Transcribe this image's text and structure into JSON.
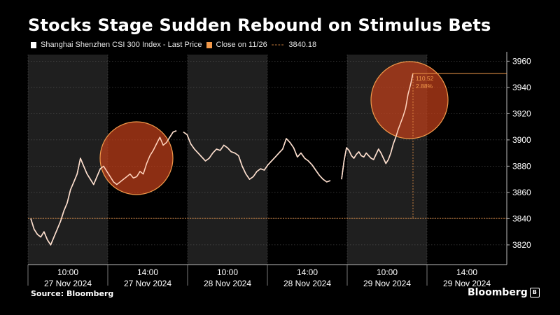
{
  "title": "Stocks Stage Sudden Rebound on Stimulus Bets",
  "legend": {
    "series_label": "Shanghai Shenzhen CSI 300 Index - Last Price",
    "ref_label": "Close on 11/26",
    "ref_value": "3840.18"
  },
  "annotation": {
    "change": "110.52",
    "pct": "2.88%"
  },
  "source": "Source: Bloomberg",
  "brand": "Bloomberg",
  "colors": {
    "background": "#000000",
    "shade": "#1f1f1f",
    "line": "#ffffff",
    "accent": "#f2994a",
    "circle": "#c2401a"
  },
  "chart_data": {
    "type": "line",
    "ylim": [
      3805,
      3965
    ],
    "yticks": [
      3820,
      3840,
      3860,
      3880,
      3900,
      3920,
      3940,
      3960
    ],
    "reference_line": 3840.18,
    "sessions": [
      {
        "date": "27 Nov 2024",
        "tick": "10:00"
      },
      {
        "date": "27 Nov 2024",
        "tick": "14:00"
      },
      {
        "date": "28 Nov 2024",
        "tick": "10:00"
      },
      {
        "date": "28 Nov 2024",
        "tick": "14:00"
      },
      {
        "date": "29 Nov 2024",
        "tick": "10:00"
      },
      {
        "date": "29 Nov 2024",
        "tick": "14:00"
      }
    ],
    "series": [
      {
        "day": "27 Nov 2024",
        "values": [
          3840,
          3832,
          3828,
          3826,
          3830,
          3824,
          3820,
          3826,
          3832,
          3838,
          3846,
          3852,
          3862,
          3868,
          3874,
          3886,
          3880,
          3874,
          3870,
          3866,
          3872,
          3878,
          3880,
          3876,
          3872,
          3868,
          3866,
          3868,
          3870,
          3872,
          3874,
          3871,
          3872,
          3876,
          3874,
          3882,
          3888,
          3892,
          3897,
          3902,
          3896,
          3898,
          3902,
          3906,
          3907
        ]
      },
      {
        "day": "28 Nov 2024",
        "values": [
          3906,
          3904,
          3897,
          3893,
          3890,
          3887,
          3884,
          3886,
          3890,
          3893,
          3892,
          3896,
          3894,
          3891,
          3890,
          3888,
          3880,
          3874,
          3870,
          3872,
          3876,
          3878,
          3877,
          3881,
          3884,
          3887,
          3890,
          3893,
          3901,
          3898,
          3894,
          3887,
          3890,
          3886,
          3884,
          3881,
          3877,
          3873,
          3870,
          3868,
          3869
        ]
      },
      {
        "day": "29 Nov 2024",
        "values": [
          3870,
          3884,
          3894,
          3892,
          3888,
          3886,
          3889,
          3891,
          3888,
          3887,
          3890,
          3888,
          3886,
          3885,
          3889,
          3893,
          3890,
          3886,
          3882,
          3885,
          3890,
          3897,
          3902,
          3908,
          3913,
          3918,
          3924,
          3935,
          3942,
          3950.7
        ]
      }
    ]
  }
}
